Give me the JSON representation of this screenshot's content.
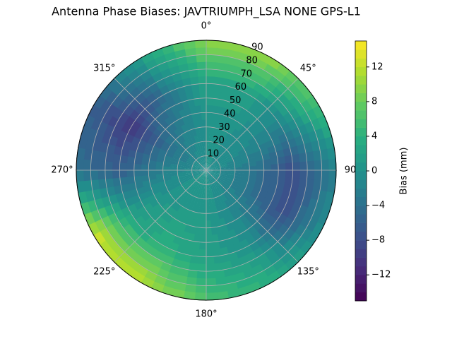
{
  "chart_data": {
    "type": "polar_contour",
    "title": "Antenna Phase Biases: JAVTRIUMPH_LSA  NONE GPS-L1",
    "colorbar_label": "Bias (mm)",
    "azimuth": [
      0,
      30,
      60,
      90,
      120,
      150,
      180,
      210,
      240,
      270,
      300,
      330
    ],
    "zenith": [
      0,
      30,
      60,
      90
    ],
    "values": [
      [
        0,
        0,
        2,
        10
      ],
      [
        0,
        0,
        2,
        10
      ],
      [
        0,
        -1,
        -2,
        6
      ],
      [
        0,
        -3,
        -8,
        -2
      ],
      [
        0,
        -3,
        -8,
        0
      ],
      [
        0,
        -1,
        0,
        4
      ],
      [
        0,
        1,
        2,
        6
      ],
      [
        0,
        1,
        4,
        12
      ],
      [
        0,
        0,
        2,
        13
      ],
      [
        0,
        -2,
        -6,
        -4
      ],
      [
        0,
        -4,
        -10,
        -6
      ],
      [
        0,
        -2,
        -4,
        2
      ]
    ],
    "rlim": [
      0,
      90
    ],
    "rticks": [
      10,
      20,
      30,
      40,
      50,
      60,
      70,
      80,
      90
    ],
    "thetaticks": [
      {
        "value": 0,
        "label": "0°"
      },
      {
        "value": 45,
        "label": "45°"
      },
      90,
      {
        "value": 135,
        "label": "135°"
      },
      {
        "value": 180,
        "label": "180°"
      },
      {
        "value": 225,
        "label": "225°"
      },
      {
        "value": 270,
        "label": "270°"
      },
      {
        "value": 315,
        "label": "315°"
      }
    ],
    "clim": [
      -15,
      15
    ],
    "cticks": [
      {
        "value": -12,
        "label": "−12"
      },
      {
        "value": -8,
        "label": "−8"
      },
      {
        "value": -4,
        "label": "−4"
      },
      0,
      4,
      8,
      12
    ],
    "grid": true
  }
}
